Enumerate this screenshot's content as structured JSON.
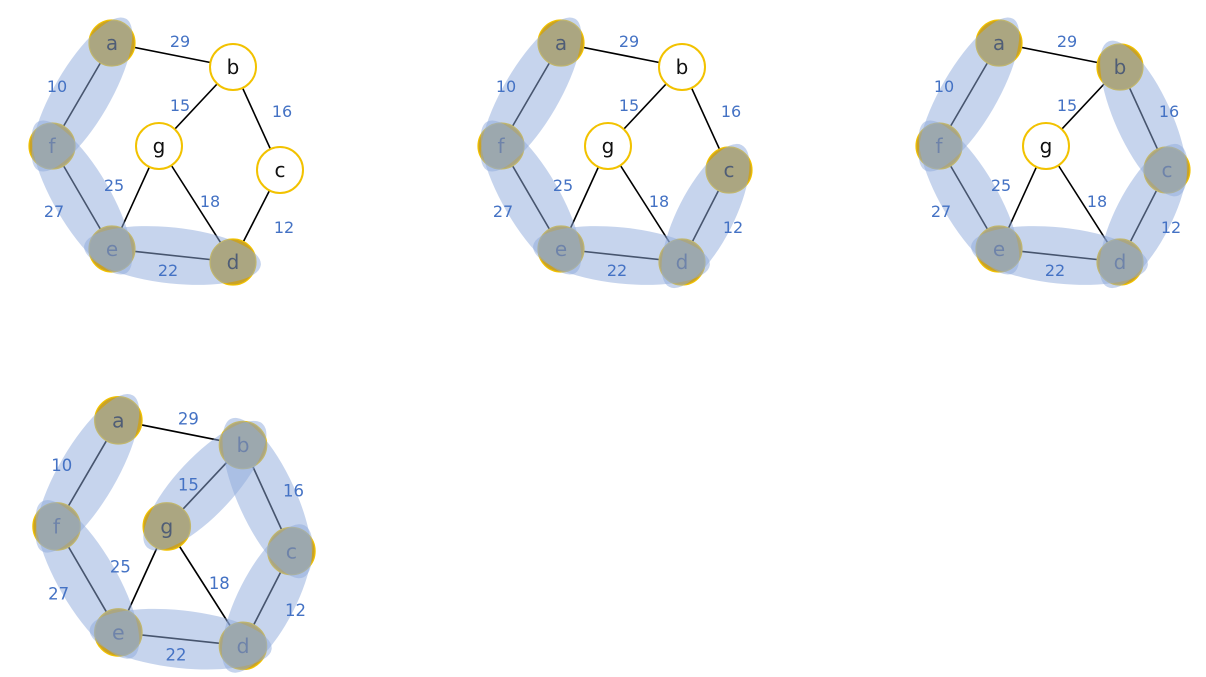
{
  "colors": {
    "selected_node": "#c9a227",
    "unselected_node_fill": "#ffffff",
    "node_border": "#f2c200",
    "highlight": "#8eaadb",
    "edge": "#000000",
    "edge_label": "#4472c4"
  },
  "graph": {
    "nodes": [
      "a",
      "b",
      "c",
      "d",
      "e",
      "f",
      "g"
    ],
    "edges": [
      {
        "id": "ab",
        "from": "a",
        "to": "b",
        "weight": "29"
      },
      {
        "id": "af",
        "from": "a",
        "to": "f",
        "weight": "10"
      },
      {
        "id": "bg",
        "from": "b",
        "to": "g",
        "weight": "15"
      },
      {
        "id": "bc",
        "from": "b",
        "to": "c",
        "weight": "16"
      },
      {
        "id": "cd",
        "from": "c",
        "to": "d",
        "weight": "12"
      },
      {
        "id": "gd",
        "from": "g",
        "to": "d",
        "weight": "18"
      },
      {
        "id": "ge",
        "from": "g",
        "to": "e",
        "weight": "25"
      },
      {
        "id": "fe",
        "from": "f",
        "to": "e",
        "weight": "27"
      },
      {
        "id": "ed",
        "from": "e",
        "to": "d",
        "weight": "22"
      }
    ]
  },
  "steps": [
    {
      "step": 1,
      "selected_nodes": [
        "a",
        "f",
        "e",
        "d"
      ],
      "highlighted_edges": [
        "af",
        "fe",
        "ed"
      ]
    },
    {
      "step": 2,
      "selected_nodes": [
        "a",
        "f",
        "e",
        "d",
        "c"
      ],
      "highlighted_edges": [
        "af",
        "fe",
        "ed",
        "cd"
      ]
    },
    {
      "step": 3,
      "selected_nodes": [
        "a",
        "f",
        "e",
        "d",
        "c",
        "b"
      ],
      "highlighted_edges": [
        "af",
        "fe",
        "ed",
        "cd",
        "bc"
      ]
    },
    {
      "step": 4,
      "selected_nodes": [
        "a",
        "f",
        "e",
        "d",
        "c",
        "b",
        "g"
      ],
      "highlighted_edges": [
        "af",
        "fe",
        "ed",
        "cd",
        "bc",
        "bg"
      ]
    }
  ]
}
